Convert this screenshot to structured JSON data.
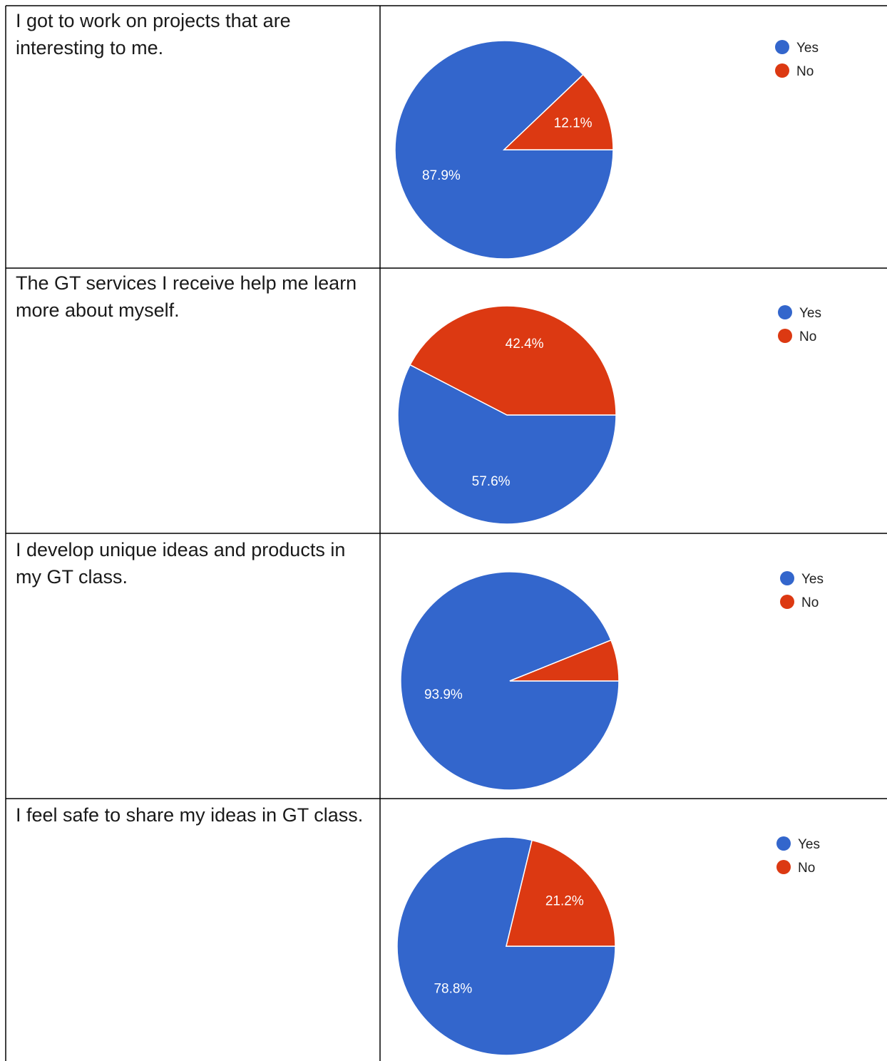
{
  "colors": {
    "yes": "#3366cc",
    "no": "#dc3912",
    "slice_label": "#ffffff",
    "legend_text": "#212121"
  },
  "legend": [
    "Yes",
    "No"
  ],
  "rows": [
    {
      "question": "I got to work on projects that are interesting to me."
    },
    {
      "question": "The GT services I receive help me learn more about myself."
    },
    {
      "question": "I develop unique ideas and products in my GT class."
    },
    {
      "question": "I feel safe to share my ideas in GT class."
    }
  ],
  "chart_data": [
    {
      "type": "pie",
      "categories": [
        "Yes",
        "No"
      ],
      "values": [
        87.9,
        12.1
      ],
      "data_labels": [
        "87.9%",
        "12.1%"
      ],
      "legend_position": "top-right"
    },
    {
      "type": "pie",
      "categories": [
        "Yes",
        "No"
      ],
      "values": [
        57.6,
        42.4
      ],
      "data_labels": [
        "57.6%",
        "42.4%"
      ],
      "legend_position": "top-right"
    },
    {
      "type": "pie",
      "categories": [
        "Yes",
        "No"
      ],
      "values": [
        93.9,
        6.1
      ],
      "data_labels": [
        "93.9%",
        ""
      ],
      "legend_position": "top-right"
    },
    {
      "type": "pie",
      "categories": [
        "Yes",
        "No"
      ],
      "values": [
        78.8,
        21.2
      ],
      "data_labels": [
        "78.8%",
        "21.2%"
      ],
      "legend_position": "top-right"
    }
  ]
}
